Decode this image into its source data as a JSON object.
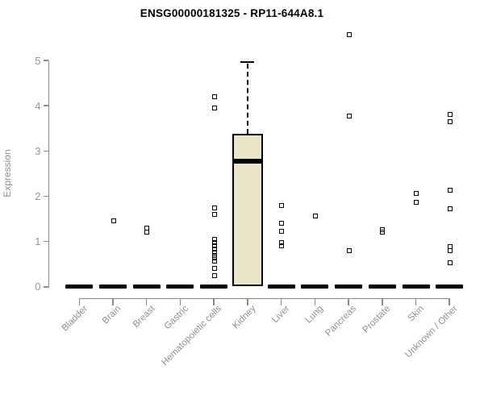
{
  "chart_data": {
    "type": "boxplot",
    "title": "ENSG00000181325 - RP11-644A8.1",
    "ylabel": "Expression",
    "xlabel": "",
    "ylim": [
      0,
      5
    ],
    "yticks": [
      0,
      1,
      2,
      3,
      4,
      5
    ],
    "grid": false,
    "legend": false,
    "categories": [
      "Bladder",
      "Brain",
      "Breast",
      "Gastric",
      "Hematopoietic cells",
      "Kidney",
      "Liver",
      "Lung",
      "Pancreas",
      "Prostate",
      "Skin",
      "Unknown / Other"
    ],
    "boxes": [
      {
        "category": "Bladder",
        "q1": 0,
        "median": 0,
        "q3": 0,
        "whisker_low": 0,
        "whisker_high": 0,
        "outliers": []
      },
      {
        "category": "Brain",
        "q1": 0,
        "median": 0,
        "q3": 0,
        "whisker_low": 0,
        "whisker_high": 0,
        "outliers": [
          1.45
        ]
      },
      {
        "category": "Breast",
        "q1": 0,
        "median": 0,
        "q3": 0,
        "whisker_low": 0,
        "whisker_high": 0,
        "outliers": [
          1.3,
          1.2
        ]
      },
      {
        "category": "Gastric",
        "q1": 0,
        "median": 0,
        "q3": 0,
        "whisker_low": 0,
        "whisker_high": 0,
        "outliers": []
      },
      {
        "category": "Hematopoietic cells",
        "q1": 0,
        "median": 0,
        "q3": 0,
        "whisker_low": 0,
        "whisker_high": 0,
        "outliers": [
          4.2,
          3.95,
          1.75,
          1.6,
          1.05,
          0.98,
          0.91,
          0.84,
          0.77,
          0.7,
          0.63,
          0.56,
          0.4,
          0.24
        ]
      },
      {
        "category": "Kidney",
        "q1": 0.02,
        "median": 2.78,
        "q3": 3.38,
        "whisker_low": 0.02,
        "whisker_high": 4.97,
        "outliers": []
      },
      {
        "category": "Liver",
        "q1": 0,
        "median": 0,
        "q3": 0,
        "whisker_low": 0,
        "whisker_high": 0,
        "outliers": [
          1.8,
          1.4,
          1.22,
          0.97,
          0.9
        ]
      },
      {
        "category": "Lung",
        "q1": 0,
        "median": 0,
        "q3": 0,
        "whisker_low": 0,
        "whisker_high": 0,
        "outliers": [
          1.56
        ]
      },
      {
        "category": "Pancreas",
        "q1": 0,
        "median": 0,
        "q3": 0,
        "whisker_low": 0,
        "whisker_high": 0,
        "outliers": [
          5.58,
          3.77,
          0.79
        ]
      },
      {
        "category": "Prostate",
        "q1": 0,
        "median": 0,
        "q3": 0,
        "whisker_low": 0,
        "whisker_high": 0,
        "outliers": [
          1.27,
          1.2
        ]
      },
      {
        "category": "Skin",
        "q1": 0,
        "median": 0,
        "q3": 0,
        "whisker_low": 0,
        "whisker_high": 0,
        "outliers": [
          2.07,
          1.87
        ]
      },
      {
        "category": "Unknown / Other",
        "q1": 0,
        "median": 0,
        "q3": 0,
        "whisker_low": 0,
        "whisker_high": 0,
        "outliers": [
          3.8,
          3.64,
          2.13,
          1.73,
          0.88,
          0.79,
          0.53
        ]
      }
    ],
    "colors": {
      "box_fill": "#ECE6C8",
      "box_border": "#000000",
      "median": "#000000",
      "outlier": "#000000",
      "zero_bar": "#000000",
      "axis": "#8a8a8a",
      "tick_label": "#949494",
      "category_label": "#8f8f8f",
      "background": "#ffffff"
    }
  }
}
